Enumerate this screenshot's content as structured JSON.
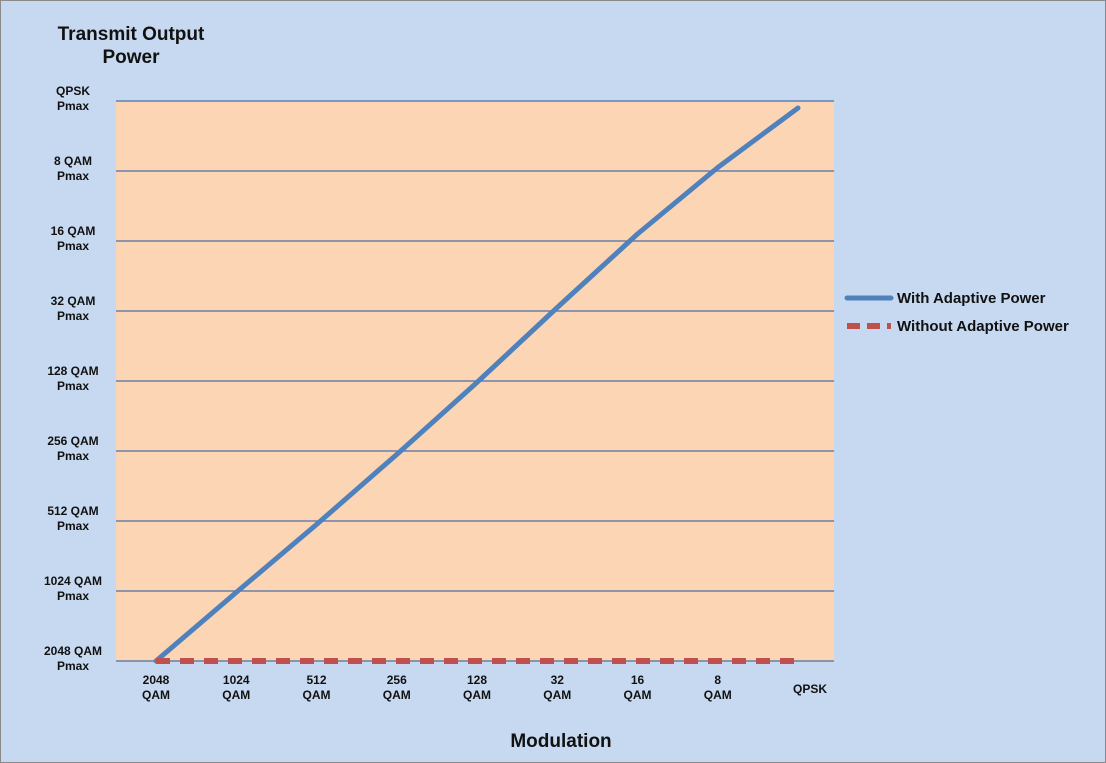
{
  "chart_data": {
    "type": "line",
    "title": "Transmit Output\nPower",
    "xlabel": "Modulation",
    "ylabel": "",
    "categories": [
      "2048\nQAM",
      "1024\nQAM",
      "512\nQAM",
      "256\nQAM",
      "128\nQAM",
      "32\nQAM",
      "16\nQAM",
      "8\nQAM",
      "QPSK"
    ],
    "y_ticks": [
      "2048 QAM\nPmax",
      "1024 QAM\nPmax",
      "512 QAM\nPmax",
      "256 QAM\nPmax",
      "128 QAM\nPmax",
      "32 QAM\nPmax",
      "16 QAM\nPmax",
      "8 QAM\nPmax",
      "QPSK\nPmax"
    ],
    "ylim": [
      0,
      8
    ],
    "grid": true,
    "legend_position": "right",
    "series": [
      {
        "name": "With Adaptive Power",
        "color": "#4f81bd",
        "style": "solid",
        "x": [
          0,
          1,
          2,
          3,
          4,
          5,
          6,
          7,
          8
        ],
        "values": [
          0,
          0.98,
          1.95,
          2.95,
          3.98,
          5.05,
          6.1,
          7.05,
          7.9
        ]
      },
      {
        "name": "Without Adaptive Power",
        "color": "#c0504d",
        "style": "dashed",
        "x": [
          0,
          8
        ],
        "values": [
          0,
          0
        ]
      }
    ],
    "colors": {
      "plot_bg": "#fcd5b4",
      "frame_bg": "#c6d9f0",
      "grid": "#4a6fa5"
    }
  }
}
